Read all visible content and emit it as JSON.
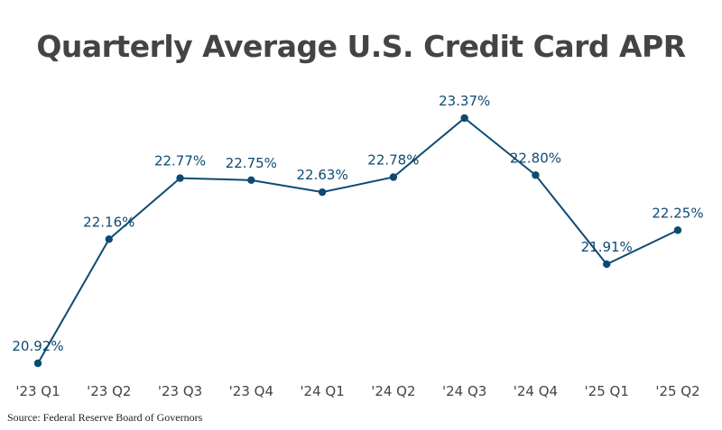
{
  "chart_data": {
    "type": "line",
    "title": "Quarterly Average U.S. Credit Card APR",
    "xlabel": "",
    "ylabel": "",
    "categories": [
      "'23 Q1",
      "'23 Q2",
      "'23 Q3",
      "'23 Q4",
      "'24 Q1",
      "'24 Q2",
      "'24 Q3",
      "'24 Q4",
      "'25 Q1",
      "'25 Q2"
    ],
    "series": [
      {
        "values": [
          20.92,
          22.16,
          22.77,
          22.75,
          22.63,
          22.78,
          23.37,
          22.8,
          21.91,
          22.25
        ],
        "labels": [
          "20.92%",
          "22.16%",
          "22.77%",
          "22.75%",
          "22.63%",
          "22.78%",
          "23.37%",
          "22.80%",
          "21.91%",
          "22.25%"
        ]
      }
    ],
    "ylim": [
      20.92,
      23.37
    ],
    "grid": false,
    "legend": "none",
    "line_color": "#0d4a73",
    "label_color": "#0d4a73",
    "tick_color": "#444444"
  },
  "source": "Source: Federal Reserve Board of Governors"
}
